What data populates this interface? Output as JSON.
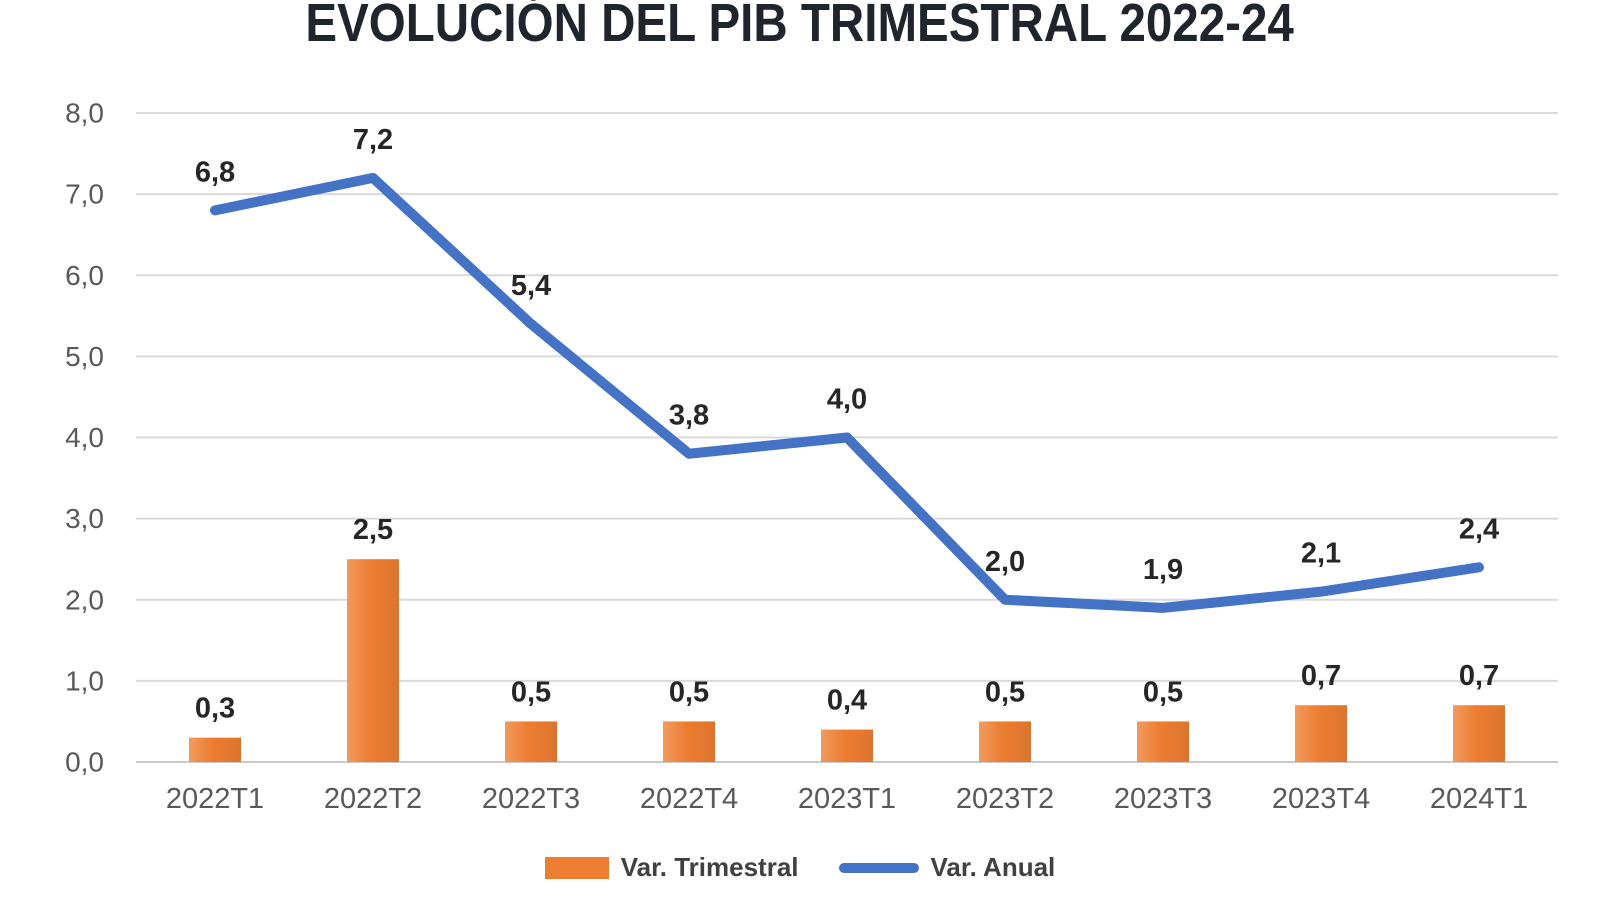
{
  "title": "EVOLUCIÓN DEL PIB TRIMESTRAL 2022-24",
  "chart_data": {
    "type": "combo-bar-line",
    "categories": [
      "2022T1",
      "2022T2",
      "2022T3",
      "2022T4",
      "2023T1",
      "2023T2",
      "2023T3",
      "2023T4",
      "2024T1"
    ],
    "series": [
      {
        "name": "Var. Trimestral",
        "type": "bar",
        "color": "#ED7D31",
        "values": [
          0.3,
          2.5,
          0.5,
          0.5,
          0.4,
          0.5,
          0.5,
          0.7,
          0.7
        ],
        "labels": [
          "0,3",
          "2,5",
          "0,5",
          "0,5",
          "0,4",
          "0,5",
          "0,5",
          "0,7",
          "0,7"
        ]
      },
      {
        "name": "Var. Anual",
        "type": "line",
        "color": "#4472C4",
        "values": [
          6.8,
          7.2,
          5.4,
          3.8,
          4.0,
          2.0,
          1.9,
          2.1,
          2.4
        ],
        "labels": [
          "6,8",
          "7,2",
          "5,4",
          "3,8",
          "4,0",
          "2,0",
          "1,9",
          "2,1",
          "2,4"
        ]
      }
    ],
    "y_axis": {
      "min": 0,
      "max": 8,
      "step": 1,
      "tick_labels": [
        "0,0",
        "1,0",
        "2,0",
        "3,0",
        "4,0",
        "5,0",
        "6,0",
        "7,0",
        "8,0"
      ]
    },
    "grid": true,
    "legend_position": "bottom"
  },
  "colors": {
    "bar": "#ED7D31",
    "line": "#4472C4",
    "grid": "#D9D9D9",
    "axis_line": "#C9C9C9",
    "axis_text": "#595959",
    "data_label": "#262626",
    "title_text": "#20242c",
    "legend_text": "#404040",
    "background": "#ffffff"
  }
}
